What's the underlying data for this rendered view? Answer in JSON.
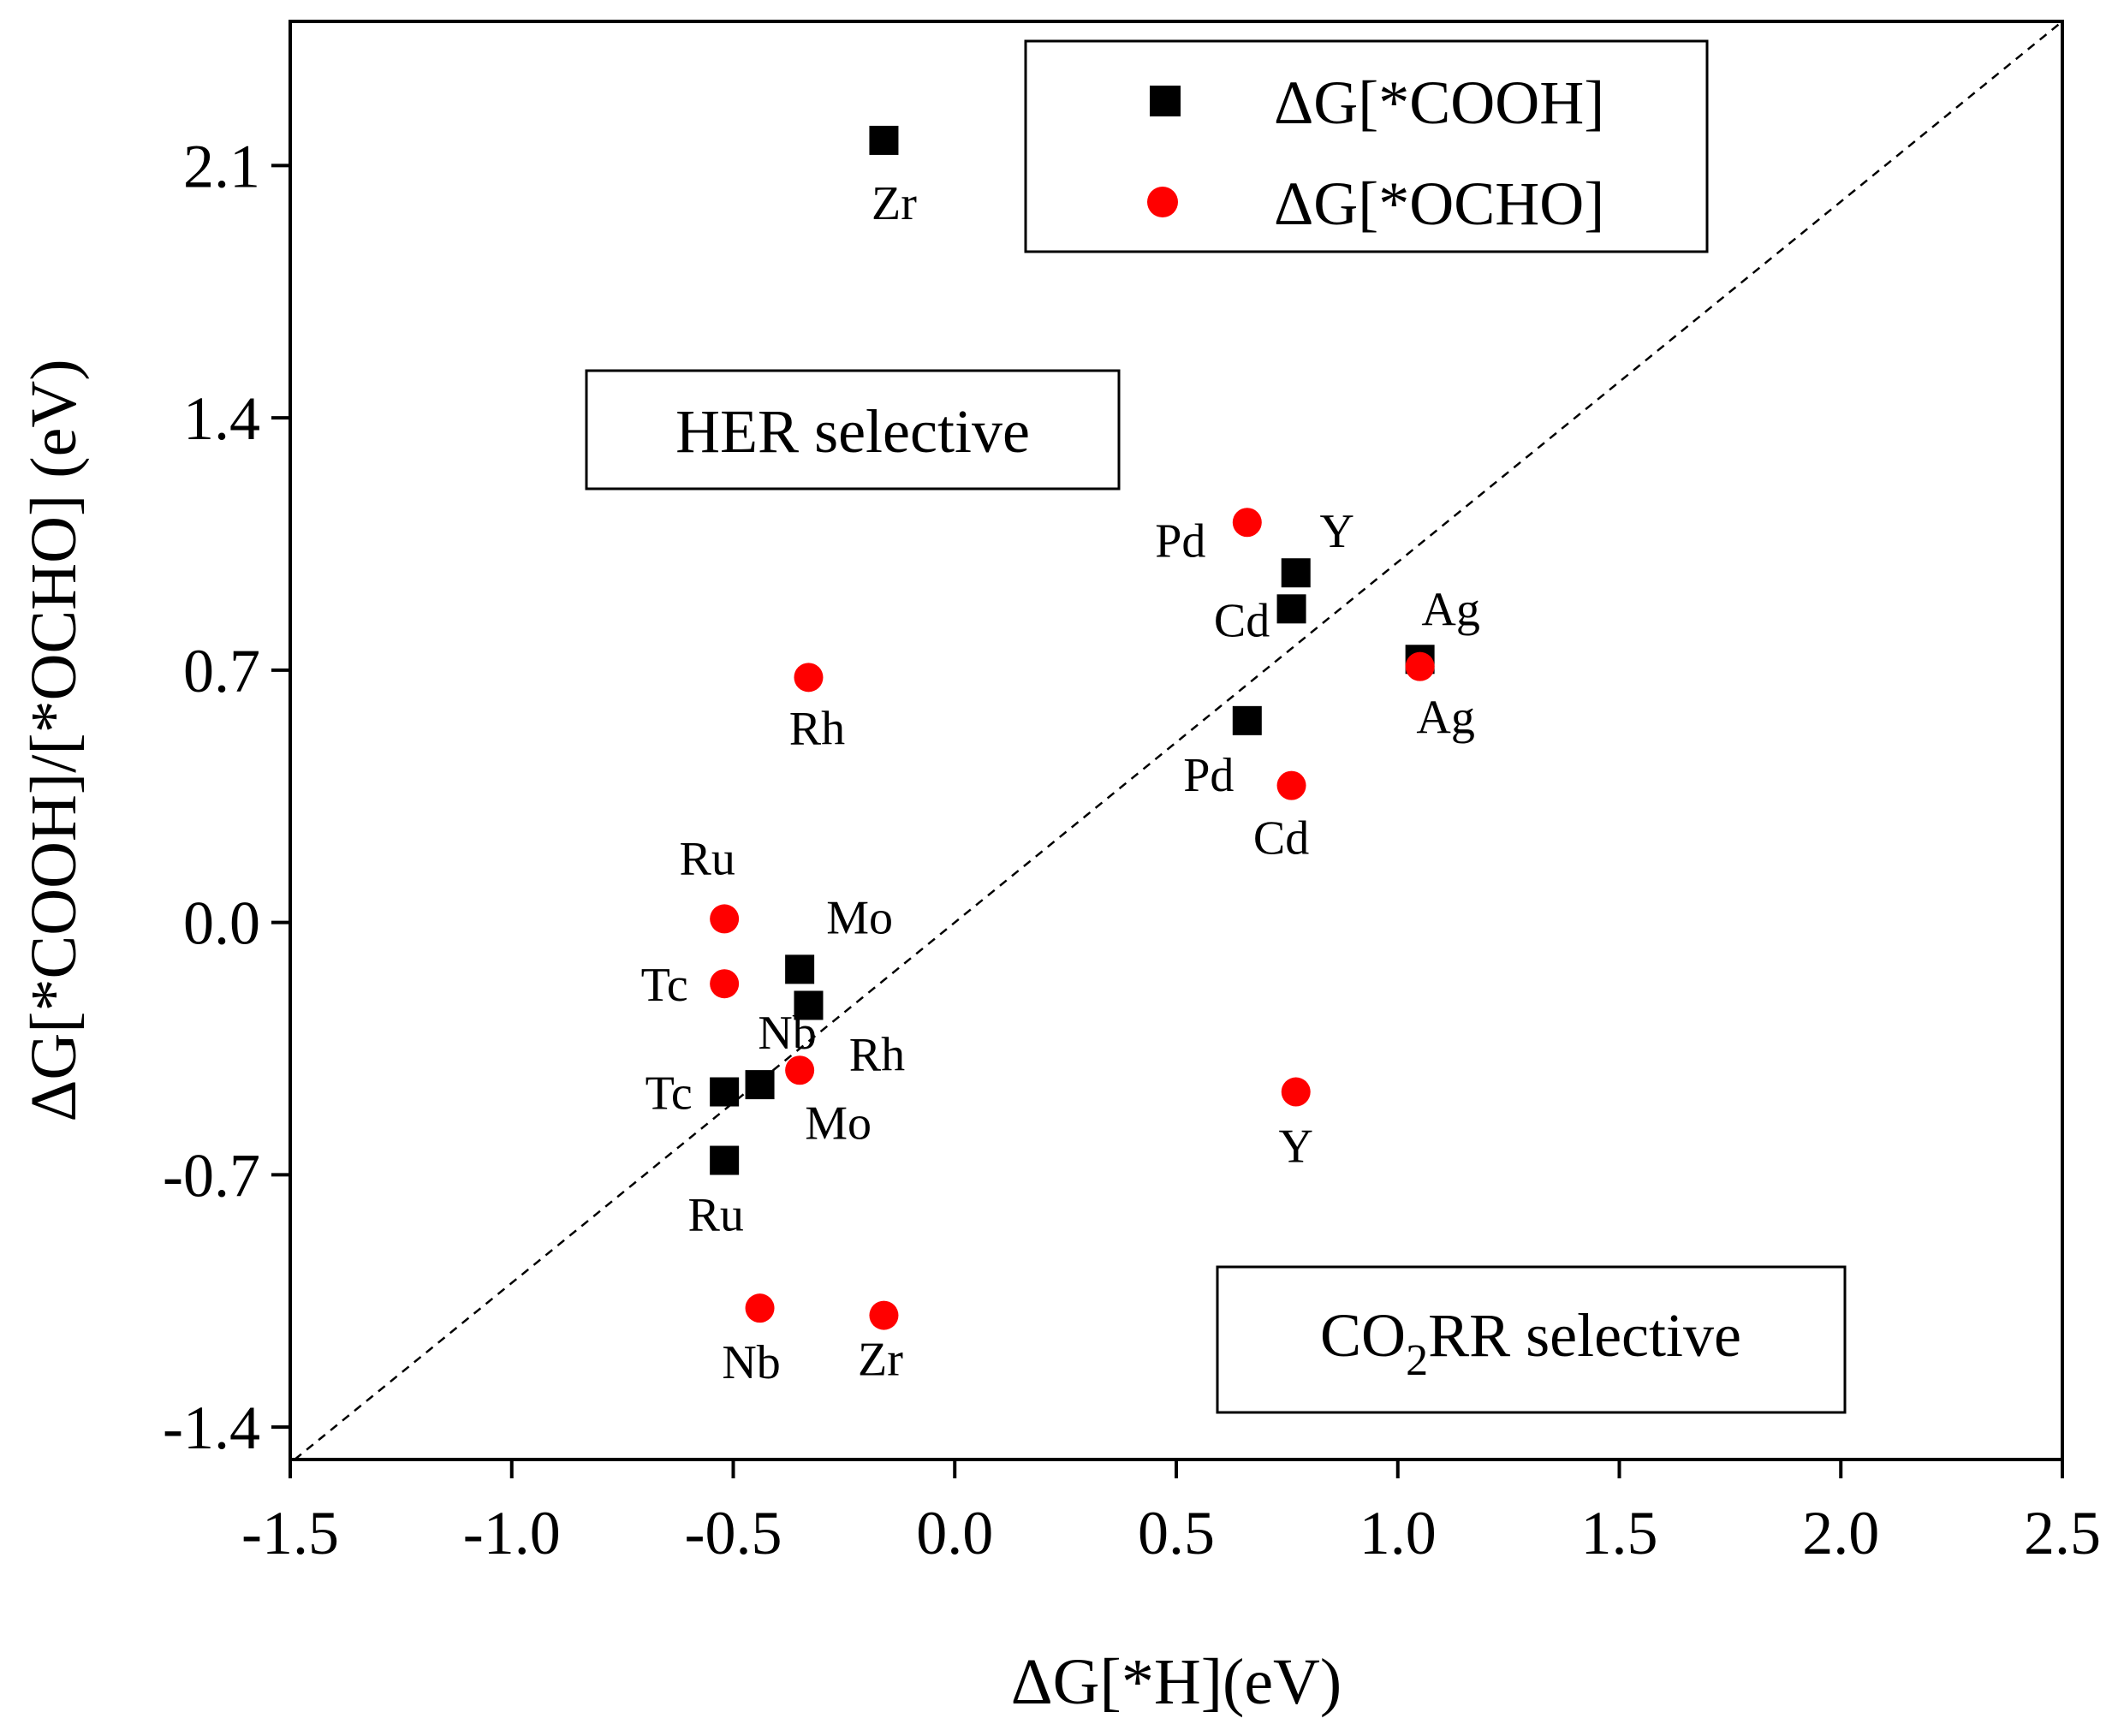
{
  "chart_data": {
    "type": "scatter",
    "xlabel": "ΔG[*H](eV)",
    "ylabel": "ΔG[*COOH]/[*OCHO] (eV)",
    "xlim": [
      -1.5,
      2.5
    ],
    "ylim": [
      -1.49,
      2.5
    ],
    "xticks": [
      "-1.5",
      "-1.0",
      "-0.5",
      "0.0",
      "0.5",
      "1.0",
      "1.5",
      "2.0",
      "2.5"
    ],
    "yticks": [
      "-1.4",
      "-0.7",
      "0.0",
      "0.7",
      "1.4",
      "2.1"
    ],
    "grid": false,
    "legend_position": "top-right",
    "diagonal_reference_line": true,
    "series": [
      {
        "name": "ΔG[*COOH]",
        "marker": "square",
        "color": "#000000",
        "points": [
          {
            "label": "Zr",
            "x": -0.16,
            "y": 2.17
          },
          {
            "label": "Y",
            "x": 0.77,
            "y": 0.97
          },
          {
            "label": "Cd",
            "x": 0.76,
            "y": 0.87
          },
          {
            "label": "Ag",
            "x": 1.05,
            "y": 0.73
          },
          {
            "label": "Pd",
            "x": 0.66,
            "y": 0.56
          },
          {
            "label": "Mo",
            "x": -0.35,
            "y": -0.13
          },
          {
            "label": "Rh",
            "x": -0.33,
            "y": -0.23
          },
          {
            "label": "Nb",
            "x": -0.44,
            "y": -0.45
          },
          {
            "label": "Tc",
            "x": -0.52,
            "y": -0.47
          },
          {
            "label": "Ru",
            "x": -0.52,
            "y": -0.66
          }
        ]
      },
      {
        "name": "ΔG[*OCHO]",
        "marker": "circle",
        "color": "#ff0000",
        "points": [
          {
            "label": "Pd",
            "x": 0.66,
            "y": 1.11
          },
          {
            "label": "Rh",
            "x": -0.33,
            "y": 0.68
          },
          {
            "label": "Ag",
            "x": 1.05,
            "y": 0.71
          },
          {
            "label": "Cd",
            "x": 0.76,
            "y": 0.38
          },
          {
            "label": "Ru",
            "x": -0.52,
            "y": 0.01
          },
          {
            "label": "Tc",
            "x": -0.52,
            "y": -0.17
          },
          {
            "label": "Mo",
            "x": -0.35,
            "y": -0.41
          },
          {
            "label": "Y",
            "x": 0.77,
            "y": -0.47
          },
          {
            "label": "Nb",
            "x": -0.44,
            "y": -1.07
          },
          {
            "label": "Zr",
            "x": -0.16,
            "y": -1.09
          }
        ]
      }
    ],
    "annotations": {
      "her_region": "HER selective",
      "co2rr_region_prefix": "CO",
      "co2rr_region_subscript": "2",
      "co2rr_region_suffix": "RR selective"
    }
  }
}
